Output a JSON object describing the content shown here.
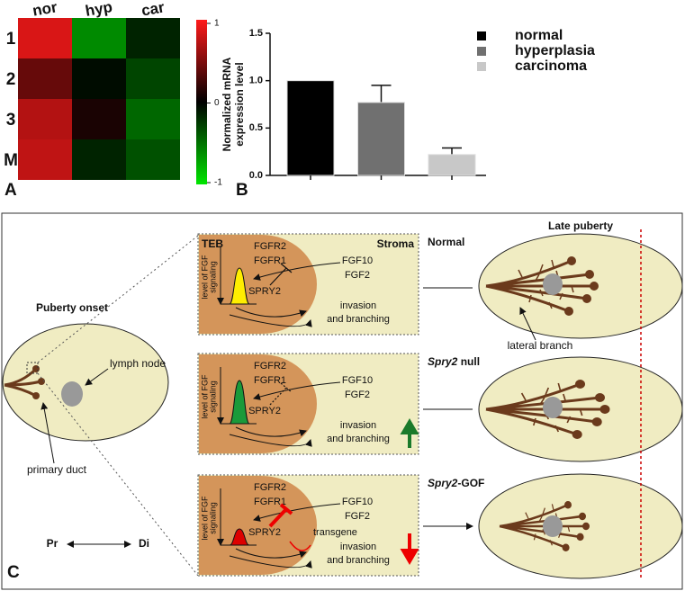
{
  "panel_a": {
    "label": "A",
    "columns": [
      "nor",
      "hyp",
      "car"
    ],
    "rows": [
      "1",
      "2",
      "3",
      "M"
    ],
    "values": [
      [
        0.85,
        -0.6,
        -0.15
      ],
      [
        0.4,
        -0.05,
        -0.3
      ],
      [
        0.7,
        0.1,
        -0.45
      ],
      [
        0.75,
        -0.15,
        -0.35
      ]
    ],
    "range": [
      -1,
      1
    ],
    "colorbar_ticks": [
      1,
      0,
      -1
    ]
  },
  "panel_b": {
    "label": "B",
    "type": "bar",
    "y_label": [
      "Normalized mRNA",
      "expression level"
    ],
    "series": [
      {
        "name": "normal",
        "color": "#000000",
        "value": 1.0,
        "error": 0
      },
      {
        "name": "hyperplasia",
        "color": "#707070",
        "value": 0.77,
        "error": 0.18
      },
      {
        "name": "carcinoma",
        "color": "#c8c8c8",
        "value": 0.22,
        "error": 0.07
      }
    ],
    "ylim": [
      0,
      1.5
    ],
    "yticks": [
      {
        "value": 0,
        "label": "0.0"
      },
      {
        "value": 0.5,
        "label": "0.5"
      },
      {
        "value": 1,
        "label": "1.0"
      },
      {
        "value": 1.5,
        "label": "1.5"
      }
    ]
  },
  "panel_c": {
    "label": "C",
    "onset_title": "Puberty onset",
    "lymph_node": "lymph node",
    "primary_duct": "primary duct",
    "pr": "Pr",
    "di": "Di",
    "late_title": "Late puberty",
    "lateral_branch": "lateral branch",
    "teb": "TEB",
    "stroma": "Stroma",
    "y_axis": [
      "level of FGF",
      "signaling"
    ],
    "transgene": "transgene",
    "conditions": [
      {
        "name": [
          "Normal"
        ],
        "fgfr2": "FGFR2",
        "fgfr1": "FGFR1",
        "fgf10": "FGF10",
        "fgf2": "FGF2",
        "spry2": "SPRY2",
        "outcome": [
          "invasion",
          "and branching"
        ]
      },
      {
        "name": [
          "Spry2",
          " null"
        ],
        "fgfr2": "FGFR2",
        "fgfr1": "FGFR1",
        "fgf10": "FGF10",
        "fgf2": "FGF2",
        "spry2": "SPRY2",
        "outcome": [
          "invasion",
          "and branching"
        ]
      },
      {
        "name": [
          "Spry2",
          "-GOF"
        ],
        "fgfr2": "FGFR2",
        "fgfr1": "FGFR1",
        "fgf10": "FGF10",
        "fgf2": "FGF2",
        "spry2": "SPRY2",
        "outcome": [
          "invasion",
          "and branching"
        ]
      }
    ]
  }
}
